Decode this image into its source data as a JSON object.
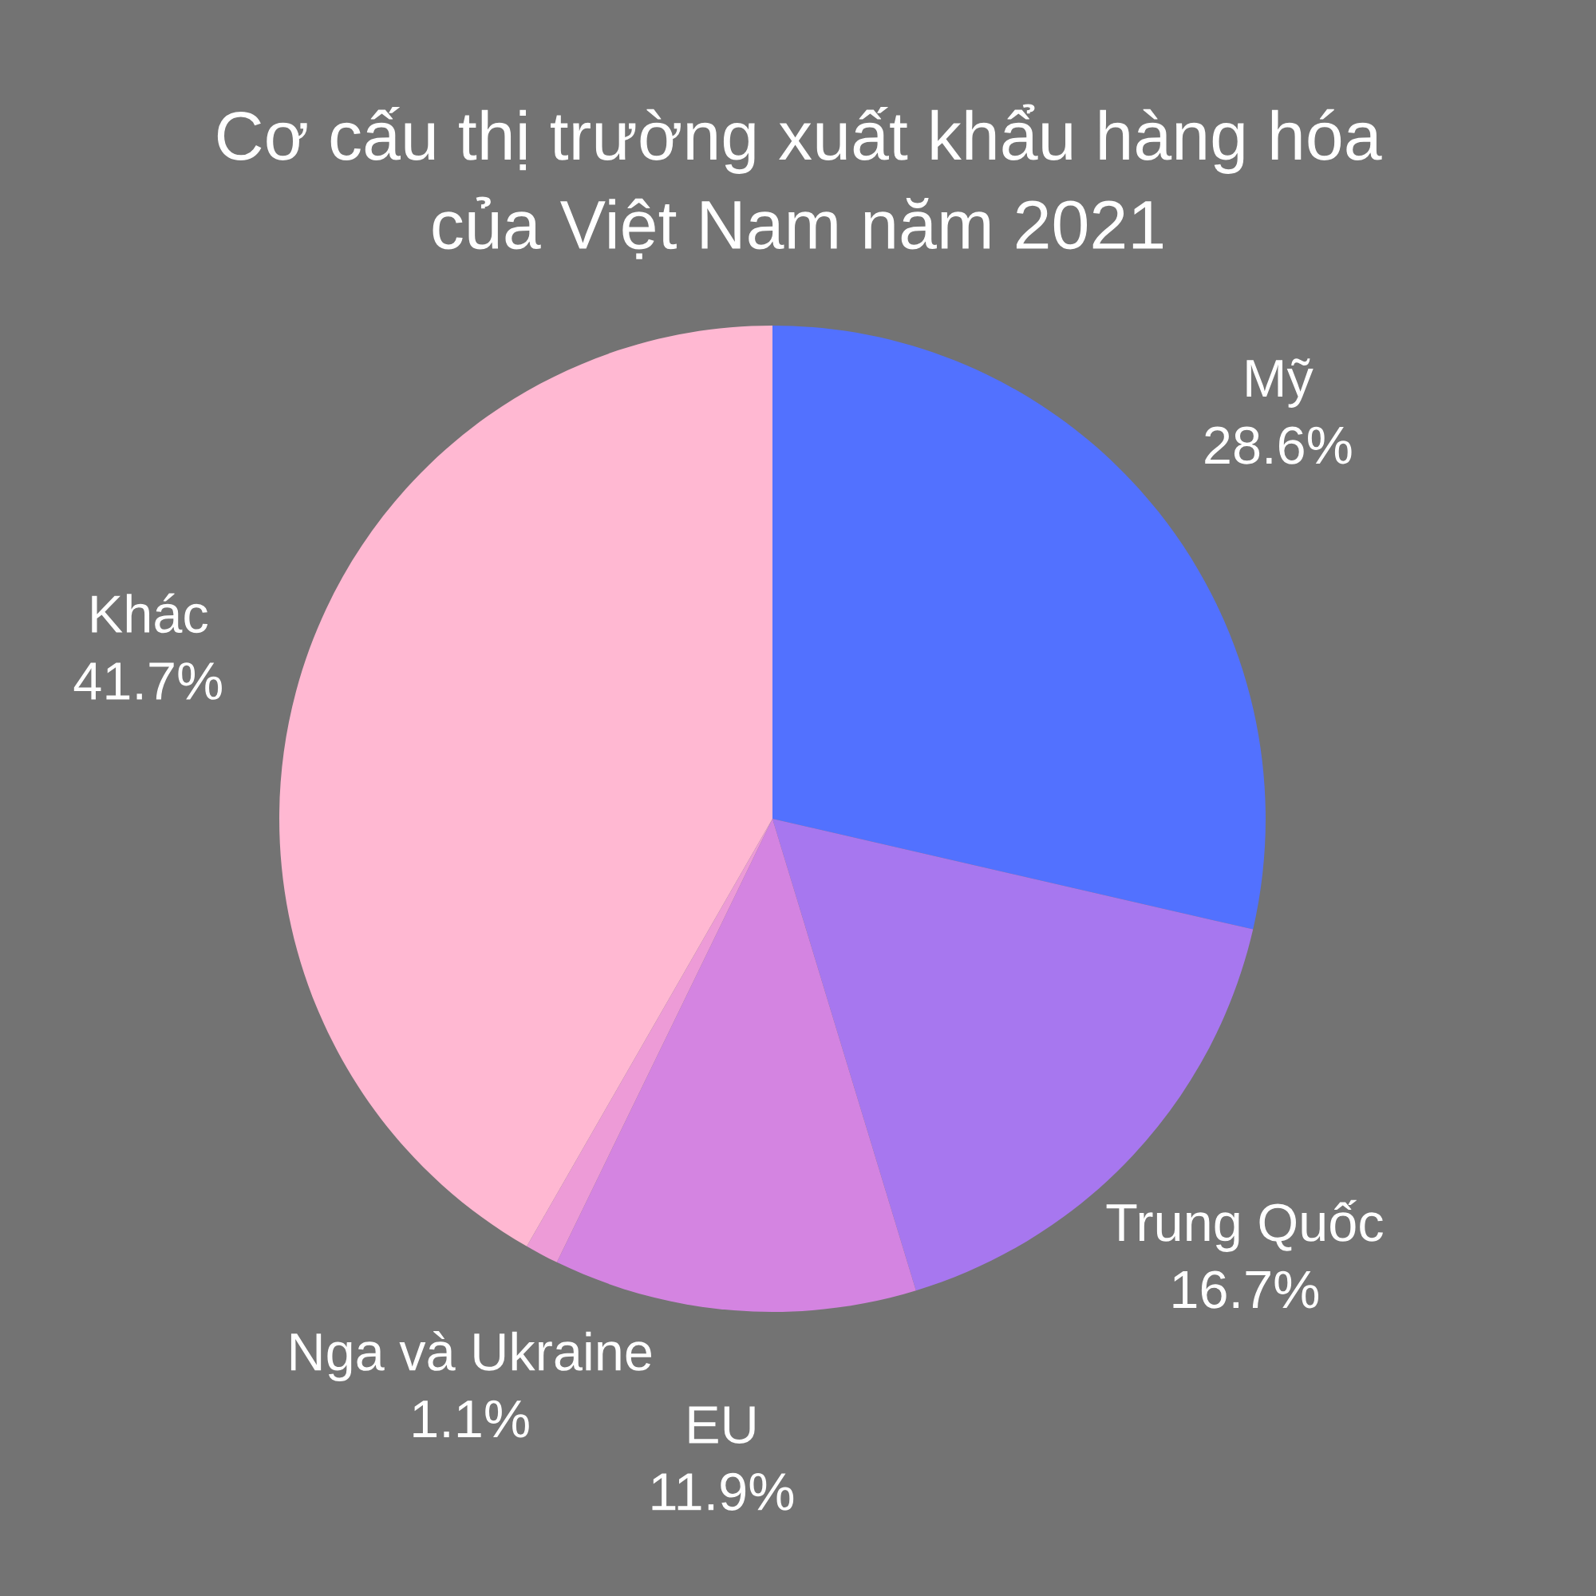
{
  "chart_data": {
    "type": "pie",
    "title": "Cơ cấu thị trường xuất khẩu hàng hóa\ncủa Việt Nam năm 2021",
    "categories": [
      "Mỹ",
      "Trung Quốc",
      "EU",
      "Nga và Ukraine",
      "Khác"
    ],
    "values": [
      28.6,
      16.7,
      11.9,
      1.1,
      41.7
    ],
    "value_labels": [
      "28.6%",
      "16.7%",
      "11.9%",
      "1.1%",
      "41.7%"
    ],
    "colors": [
      "#5271ff",
      "#a777ef",
      "#d484e1",
      "#ed9bd7",
      "#ffb8d2"
    ]
  }
}
